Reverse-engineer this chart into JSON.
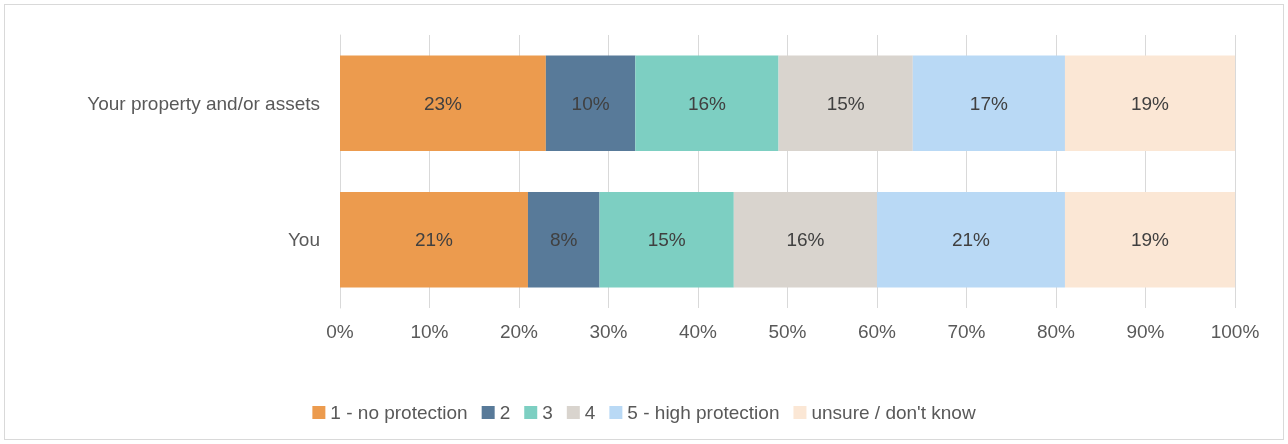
{
  "chart_data": {
    "type": "bar",
    "orientation": "horizontal",
    "stacked": true,
    "categories": [
      "Your property and/or assets",
      "You"
    ],
    "series": [
      {
        "name": "1 - no protection",
        "color": "#ec9b4e",
        "values": [
          23,
          21
        ],
        "value_labels": [
          "23%",
          "21%"
        ]
      },
      {
        "name": "2",
        "color": "#587a99",
        "values": [
          10,
          8
        ],
        "value_labels": [
          "10%",
          "8%"
        ]
      },
      {
        "name": "3",
        "color": "#7dcfc2",
        "values": [
          16,
          15
        ],
        "value_labels": [
          "16%",
          "15%"
        ]
      },
      {
        "name": "4",
        "color": "#d9d4ce",
        "values": [
          15,
          16
        ],
        "value_labels": [
          "15%",
          "16%"
        ]
      },
      {
        "name": "5 - high protection",
        "color": "#b9d9f5",
        "values": [
          17,
          21
        ],
        "value_labels": [
          "17%",
          "21%"
        ]
      },
      {
        "name": "unsure / don't know",
        "color": "#fbe7d5",
        "values": [
          19,
          19
        ],
        "value_labels": [
          "19%",
          "19%"
        ]
      }
    ],
    "xlim": [
      0,
      100
    ],
    "xticks": [
      {
        "value": 0,
        "label": "0%"
      },
      {
        "value": 10,
        "label": "10%"
      },
      {
        "value": 20,
        "label": "20%"
      },
      {
        "value": 30,
        "label": "30%"
      },
      {
        "value": 40,
        "label": "40%"
      },
      {
        "value": 50,
        "label": "50%"
      },
      {
        "value": 60,
        "label": "60%"
      },
      {
        "value": 70,
        "label": "70%"
      },
      {
        "value": 80,
        "label": "80%"
      },
      {
        "value": 90,
        "label": "90%"
      },
      {
        "value": 100,
        "label": "100%"
      }
    ],
    "grid": "x",
    "legend": "bottom"
  }
}
